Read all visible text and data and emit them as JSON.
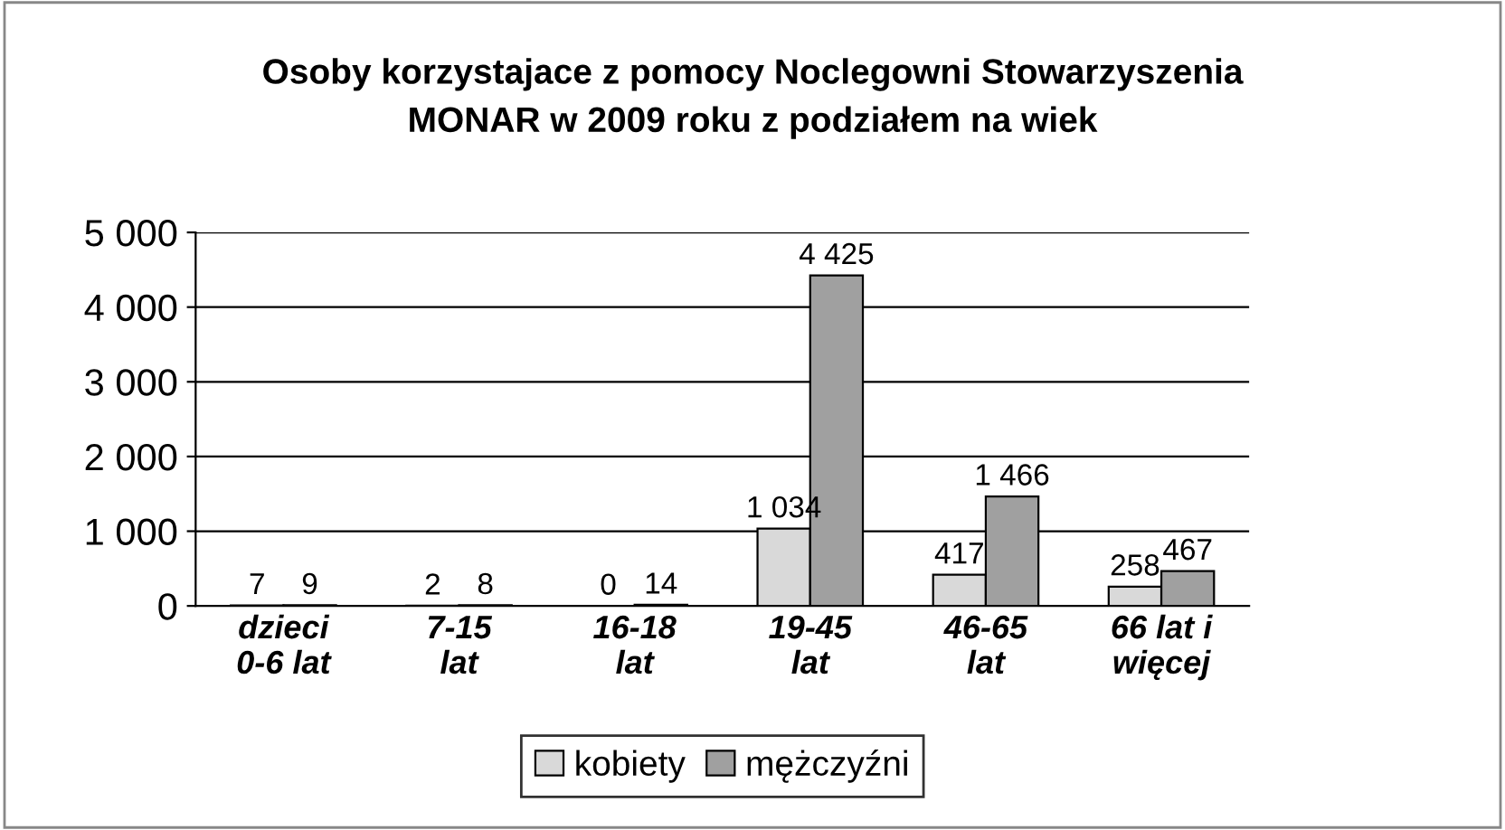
{
  "chart_data": {
    "type": "bar",
    "title": "Osoby korzystajace z pomocy Noclegowni Stowarzyszenia\nMONAR w 2009 roku z podziałem na wiek",
    "categories": [
      "dzieci\n0-6 lat",
      "7-15\nlat",
      "16-18\nlat",
      "19-45\nlat",
      "46-65\nlat",
      "66 lat i\nwięcej"
    ],
    "series": [
      {
        "name": "kobiety",
        "color": "#d9d9d9",
        "values": [
          7,
          2,
          0,
          1034,
          417,
          258
        ],
        "value_labels": [
          "7",
          "2",
          "0",
          "1 034",
          "417",
          "258"
        ]
      },
      {
        "name": "mężczyźni",
        "color": "#a0a0a0",
        "values": [
          9,
          8,
          14,
          4425,
          1466,
          467
        ],
        "value_labels": [
          "9",
          "8",
          "14",
          "4 425",
          "1 466",
          "467"
        ]
      }
    ],
    "ylim": [
      0,
      5000
    ],
    "yticks": [
      0,
      {
        "value": 1000,
        "label": "1 000"
      },
      {
        "value": 2000,
        "label": "2 000"
      },
      {
        "value": 3000,
        "label": "3 000"
      },
      {
        "value": 4000,
        "label": "4 000"
      },
      {
        "value": 5000,
        "label": "5 000"
      }
    ],
    "grid": "y",
    "legend": "bottom"
  }
}
